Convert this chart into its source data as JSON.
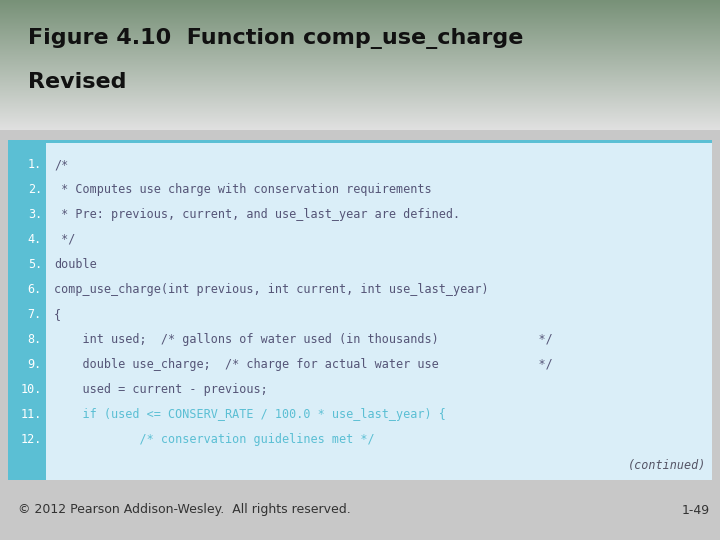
{
  "title_line1": "Figure 4.10  Function comp_use_charge",
  "title_line2": "Revised",
  "title_fontsize": 16,
  "title_color": "#111111",
  "code_bg": "#daeef8",
  "code_border_top": "#5bbfd4",
  "code_left_strip": "#5bbfd4",
  "footer_text": "© 2012 Pearson Addison-Wesley.  All rights reserved.",
  "footer_right": "1-49",
  "line_numbers": [
    "1.",
    "2.",
    "3.",
    "4.",
    "5.",
    "6.",
    "7.",
    "8.",
    "9.",
    "10.",
    "11.",
    "12."
  ],
  "code_lines": [
    "/*",
    " * Computes use charge with conservation requirements",
    " * Pre: previous, current, and use_last_year are defined.",
    " */",
    "double",
    "comp_use_charge(int previous, int current, int use_last_year)",
    "{",
    "    int used;  /* gallons of water used (in thousands)              */",
    "    double use_charge;  /* charge for actual water use              */",
    "    used = current - previous;",
    "    if (used <= CONSERV_RATE / 100.0 * use_last_year) {",
    "            /* conservation guidelines met */"
  ],
  "line_colors": [
    "#555577",
    "#555577",
    "#555577",
    "#555577",
    "#555577",
    "#555577",
    "#555577",
    "#555577",
    "#555577",
    "#555577",
    "#5bbfd4",
    "#5bbfd4"
  ],
  "continued_text": "(continued)",
  "bg_color_top": "#7a9a7a",
  "bg_color_bottom": "#e8e8e8",
  "footer_color": "#333333",
  "code_fontsize": 8.5,
  "linenum_fontsize": 8.5
}
